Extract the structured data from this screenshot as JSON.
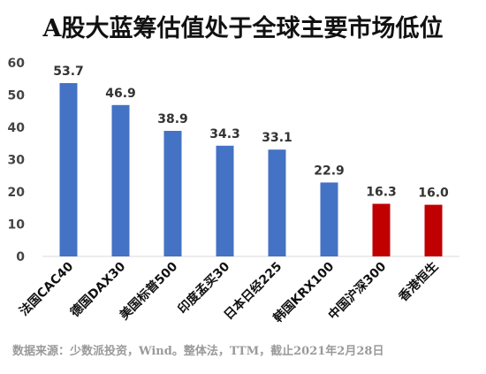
{
  "title": "A股大蓝筹估值处于全球主要市场低位",
  "source": "数据来源：少数派投资，Wind。整体法，TTM，截止2021年2月28日",
  "colors": {
    "default": "#4472C4",
    "highlight": "#C00000",
    "axis": "#d9d9d9",
    "text": "#404040"
  },
  "chart_data": {
    "type": "bar",
    "title": "A股大蓝筹估值处于全球主要市场低位",
    "xlabel": "",
    "ylabel": "",
    "ylim": [
      0,
      60
    ],
    "yticks": [
      0,
      10,
      20,
      30,
      40,
      50,
      60
    ],
    "grid": false,
    "legend": "none",
    "categories": [
      "法国CAC40",
      "德国DAX30",
      "美国标普500",
      "印度孟买30",
      "日本日经225",
      "韩国KRX100",
      "中国沪深300",
      "香港恒生"
    ],
    "values": [
      53.7,
      46.9,
      38.9,
      34.3,
      33.1,
      22.9,
      16.3,
      16.0
    ],
    "data_labels": [
      "53.7",
      "46.9",
      "38.9",
      "34.3",
      "33.1",
      "22.9",
      "16.3",
      "16.0"
    ],
    "bar_colors": [
      "#4472C4",
      "#4472C4",
      "#4472C4",
      "#4472C4",
      "#4472C4",
      "#4472C4",
      "#C00000",
      "#C00000"
    ]
  }
}
